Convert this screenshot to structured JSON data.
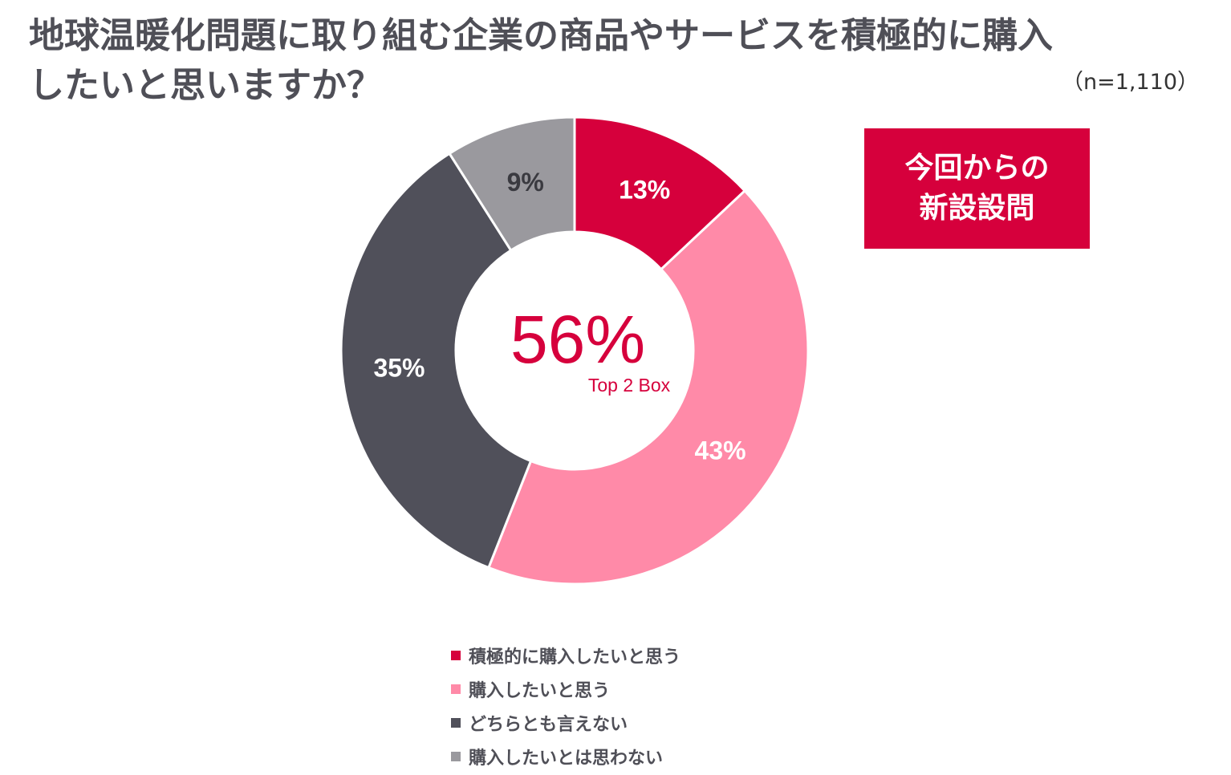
{
  "title_line1": "地球温暖化問題に取り組む企業の商品やサービスを積極的に購入",
  "title_line2": "したいと思いますか？",
  "sample_size": "（n=1,110）",
  "badge_line1": "今回からの",
  "badge_line2": "新設設問",
  "center_value": "56%",
  "center_label": "Top 2 Box",
  "colors": {
    "accent": "#d6003c",
    "pink": "#ff8aa8",
    "dark": "#50505a",
    "gray": "#9a999e"
  },
  "chart_data": {
    "type": "donut",
    "title": "地球温暖化問題に取り組む企業の商品やサービスを積極的に購入したいと思いますか？",
    "categories": [
      "積極的に購入したいと思う",
      "購入したいと思う",
      "どちらとも言えない",
      "購入したいとは思わない"
    ],
    "values": [
      13,
      43,
      35,
      9
    ],
    "labels": [
      "13%",
      "43%",
      "35%",
      "9%"
    ],
    "colors": [
      "#d6003c",
      "#ff8aa8",
      "#50505a",
      "#9a999e"
    ],
    "label_colors": [
      "#ffffff",
      "#ffffff",
      "#ffffff",
      "#3a3a40"
    ],
    "center_text": "56%",
    "center_subtext": "Top 2 Box",
    "legend_position": "bottom"
  }
}
